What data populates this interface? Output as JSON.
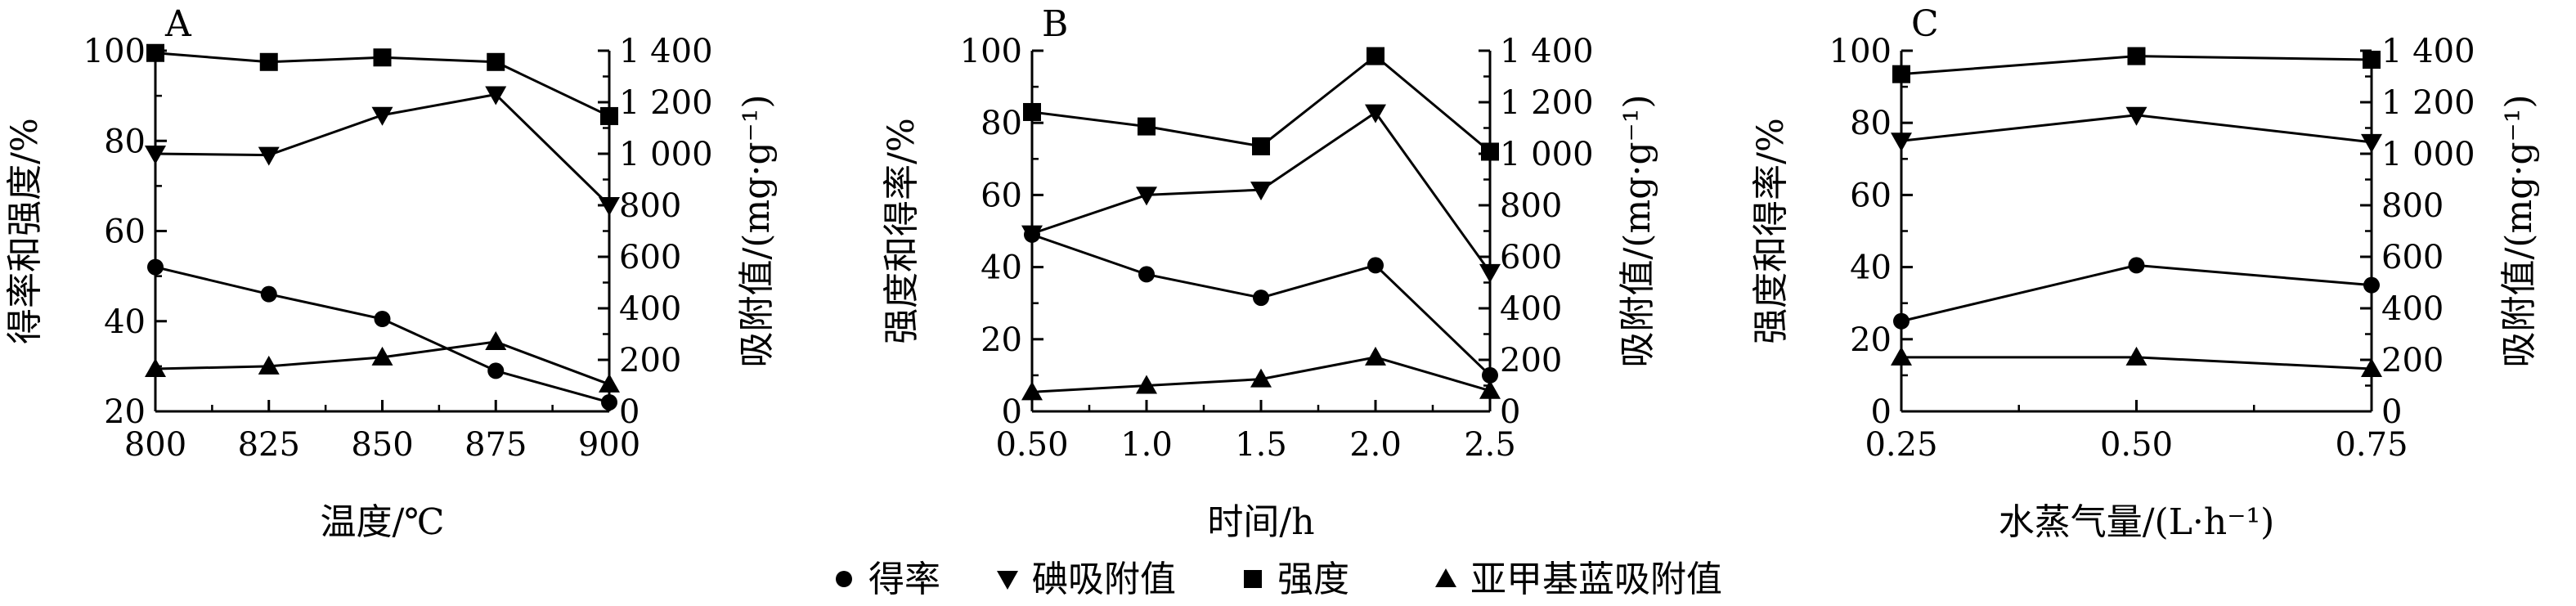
{
  "legend": [
    "得率",
    "碘吸附值",
    "强度",
    "亚甲基蓝吸附值"
  ],
  "chart_data": [
    {
      "type": "line",
      "panel": "A",
      "xlabel": "温度/℃",
      "ylabel": "得率和强度/%",
      "y2label": "吸附值/(mg·g⁻¹)",
      "x": [
        800,
        825,
        850,
        875,
        900
      ],
      "xticks": [
        "800",
        "825",
        "850",
        "875",
        "900"
      ],
      "ylim": [
        20,
        100
      ],
      "yticks": [
        "20",
        "40",
        "60",
        "80",
        "100"
      ],
      "y2lim": [
        0,
        1400
      ],
      "y2ticks": [
        "0",
        "200",
        "400",
        "600",
        "800",
        "1 000",
        "1 200",
        "1 400"
      ],
      "series": [
        {
          "name": "得率",
          "axis": "left",
          "marker": "circle",
          "values": [
            52,
            46,
            40.5,
            29,
            22
          ]
        },
        {
          "name": "碘吸附值",
          "axis": "right",
          "marker": "triangle-down",
          "values": [
            1000,
            995,
            1150,
            1230,
            800
          ]
        },
        {
          "name": "强度",
          "axis": "left",
          "marker": "square",
          "values": [
            99.5,
            97.5,
            98.5,
            97.5,
            85.5
          ]
        },
        {
          "name": "亚甲基蓝吸附值",
          "axis": "right",
          "marker": "triangle-up",
          "values": [
            165,
            175,
            210,
            270,
            105
          ]
        }
      ]
    },
    {
      "type": "line",
      "panel": "B",
      "xlabel": "时间/h",
      "ylabel": "强度和得率/%",
      "y2label": "吸附值/(mg·g⁻¹)",
      "x": [
        0.5,
        1.0,
        1.5,
        2.0,
        2.5
      ],
      "xticks": [
        "0.50",
        "1.0",
        "1.5",
        "2.0",
        "2.5"
      ],
      "ylim": [
        0,
        100
      ],
      "yticks": [
        "0",
        "20",
        "40",
        "60",
        "80",
        "100"
      ],
      "y2lim": [
        0,
        1400
      ],
      "y2ticks": [
        "0",
        "200",
        "400",
        "600",
        "800",
        "1 000",
        "1 200",
        "1 400"
      ],
      "series": [
        {
          "name": "得率",
          "axis": "left",
          "marker": "circle",
          "values": [
            49,
            38,
            31.5,
            40.5,
            10
          ]
        },
        {
          "name": "碘吸附值",
          "axis": "right",
          "marker": "triangle-down",
          "values": [
            690,
            840,
            860,
            1160,
            540
          ]
        },
        {
          "name": "强度",
          "axis": "left",
          "marker": "square",
          "values": [
            83,
            79,
            73.5,
            98.5,
            72
          ]
        },
        {
          "name": "亚甲基蓝吸附值",
          "axis": "right",
          "marker": "triangle-up",
          "values": [
            75,
            100,
            125,
            210,
            80
          ]
        }
      ]
    },
    {
      "type": "line",
      "panel": "C",
      "xlabel": "水蒸气量/(L·h⁻¹)",
      "ylabel": "强度和得率/%",
      "y2label": "吸附值/(mg·g⁻¹)",
      "x": [
        0.25,
        0.5,
        0.75
      ],
      "xticks": [
        "0.25",
        "0.50",
        "0.75"
      ],
      "ylim": [
        0,
        100
      ],
      "yticks": [
        "0",
        "20",
        "40",
        "60",
        "80",
        "100"
      ],
      "y2lim": [
        0,
        1400
      ],
      "y2ticks": [
        "0",
        "200",
        "400",
        "600",
        "800",
        "1 000",
        "1 200",
        "1 400"
      ],
      "series": [
        {
          "name": "得率",
          "axis": "left",
          "marker": "circle",
          "values": [
            25,
            40.5,
            35
          ]
        },
        {
          "name": "碘吸附值",
          "axis": "right",
          "marker": "triangle-down",
          "values": [
            1050,
            1150,
            1045
          ]
        },
        {
          "name": "强度",
          "axis": "left",
          "marker": "square",
          "values": [
            93.5,
            98.5,
            97.5
          ]
        },
        {
          "name": "亚甲基蓝吸附值",
          "axis": "right",
          "marker": "triangle-up",
          "values": [
            210,
            210,
            165
          ]
        }
      ]
    }
  ]
}
